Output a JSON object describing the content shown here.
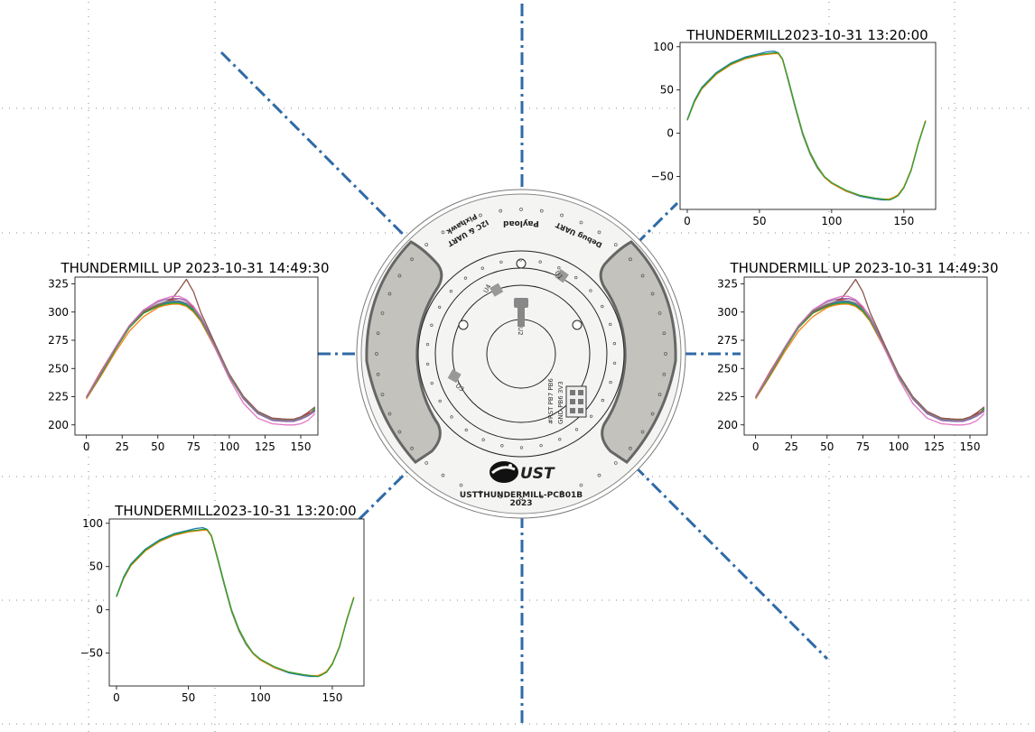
{
  "board": {
    "labels": {
      "payload": "Payload",
      "pixhawk": "Pixhawk",
      "i2c_uart": "I2C & UART",
      "debug_uart": "Debug UART",
      "u1": "U1",
      "u2": "U2",
      "u3": "U3",
      "u4": "U4",
      "header_row1": "#RST PB7 PB6",
      "header_row2": "GND PB6 3V3",
      "logo": "UST",
      "board_name": "USTTHUNDERMILL-PCB01B",
      "year": "2023"
    },
    "colors": {
      "board": "#f4f4f2",
      "pads": "#c4c2bc",
      "axis_lines": "#2f6aa6"
    }
  },
  "chart_data": [
    {
      "id": "top-right",
      "type": "line",
      "title": "THUNDERMILL2023-10-31 13:20:00",
      "xticks": [
        0,
        50,
        100,
        150
      ],
      "yticks": [
        100,
        50,
        0,
        -50
      ],
      "xlim": [
        -5,
        172
      ],
      "ylim": [
        -88,
        105
      ],
      "x": [
        0,
        5,
        10,
        20,
        30,
        40,
        50,
        55,
        60,
        63,
        66,
        70,
        75,
        80,
        85,
        90,
        95,
        100,
        110,
        120,
        130,
        135,
        140,
        143,
        146,
        150,
        155,
        160,
        165
      ],
      "series": [
        {
          "color": "#1f77b4",
          "values": [
            16,
            38,
            53,
            70,
            81,
            88,
            92,
            94,
            95,
            93,
            85,
            60,
            28,
            -2,
            -24,
            -40,
            -51,
            -58,
            -67,
            -73,
            -76,
            -77,
            -77,
            -75,
            -72,
            -63,
            -43,
            -12,
            14
          ]
        },
        {
          "color": "#ff7f0e",
          "values": [
            15,
            36,
            51,
            68,
            79,
            86,
            90,
            91,
            92,
            92,
            85,
            61,
            29,
            -1,
            -23,
            -39,
            -51,
            -58,
            -67,
            -72,
            -75,
            -76,
            -76,
            -74,
            -71,
            -62,
            -42,
            -11,
            15
          ]
        },
        {
          "color": "#2ca02c",
          "values": [
            15,
            37,
            52,
            69,
            80,
            87,
            91,
            92,
            93,
            93,
            86,
            62,
            30,
            0,
            -22,
            -38,
            -50,
            -57,
            -66,
            -72,
            -75,
            -76,
            -77,
            -75,
            -72,
            -63,
            -43,
            -12,
            14
          ]
        }
      ]
    },
    {
      "id": "middle-left",
      "type": "line",
      "title": "THUNDERMILL UP 2023-10-31 14:49:30",
      "xticks": [
        0,
        25,
        50,
        75,
        100,
        125,
        150
      ],
      "yticks": [
        325,
        300,
        275,
        250,
        225,
        200
      ],
      "xlim": [
        -8,
        162
      ],
      "ylim": [
        191,
        331
      ],
      "x": [
        0,
        10,
        20,
        30,
        40,
        50,
        55,
        60,
        65,
        70,
        75,
        80,
        90,
        100,
        110,
        120,
        130,
        140,
        145,
        150,
        155,
        160
      ],
      "series": [
        {
          "color": "#1f77b4",
          "values": [
            224,
            245,
            267,
            287,
            300,
            306,
            308,
            309,
            309,
            307,
            302,
            294,
            270,
            244,
            224,
            211,
            205,
            204,
            204,
            206,
            209,
            214
          ]
        },
        {
          "color": "#ff7f0e",
          "values": [
            223,
            243,
            264,
            283,
            296,
            304,
            306,
            307,
            307,
            305,
            300,
            292,
            268,
            243,
            223,
            210,
            205,
            204,
            204,
            206,
            209,
            213
          ]
        },
        {
          "color": "#2ca02c",
          "values": [
            224,
            244,
            266,
            286,
            299,
            305,
            307,
            308,
            308,
            306,
            301,
            293,
            269,
            243,
            223,
            210,
            204,
            203,
            204,
            205,
            208,
            215
          ]
        },
        {
          "color": "#d62728",
          "values": [
            225,
            247,
            268,
            288,
            301,
            307,
            309,
            311,
            312,
            310,
            304,
            296,
            271,
            245,
            225,
            212,
            206,
            205,
            205,
            207,
            210,
            213
          ]
        },
        {
          "color": "#9467bd",
          "values": [
            224,
            246,
            268,
            288,
            302,
            309,
            311,
            312,
            312,
            310,
            305,
            296,
            271,
            244,
            223,
            210,
            204,
            203,
            203,
            205,
            208,
            212
          ]
        },
        {
          "color": "#8c564b",
          "values": [
            225,
            246,
            267,
            287,
            300,
            306,
            309,
            312,
            320,
            329,
            318,
            300,
            272,
            245,
            225,
            212,
            206,
            205,
            205,
            207,
            211,
            216
          ]
        },
        {
          "color": "#e377c2",
          "values": [
            225,
            246,
            268,
            288,
            302,
            310,
            312,
            314,
            314,
            311,
            305,
            295,
            268,
            241,
            219,
            206,
            201,
            200,
            200,
            201,
            204,
            210
          ]
        },
        {
          "color": "#7f7f7f",
          "values": [
            224,
            245,
            267,
            287,
            301,
            307,
            309,
            310,
            310,
            308,
            303,
            294,
            270,
            244,
            224,
            211,
            205,
            204,
            204,
            206,
            209,
            213
          ]
        }
      ]
    },
    {
      "id": "middle-right",
      "type": "line",
      "title": "THUNDERMILL UP 2023-10-31 14:49:30",
      "xticks": [
        0,
        25,
        50,
        75,
        100,
        125,
        150
      ],
      "yticks": [
        325,
        300,
        275,
        250,
        225,
        200
      ],
      "xlim": [
        -8,
        162
      ],
      "ylim": [
        191,
        331
      ],
      "x": [
        0,
        10,
        20,
        30,
        40,
        50,
        55,
        60,
        65,
        70,
        75,
        80,
        90,
        100,
        110,
        120,
        130,
        140,
        145,
        150,
        155,
        160
      ],
      "series": [
        {
          "color": "#1f77b4",
          "values": [
            224,
            245,
            267,
            287,
            300,
            306,
            308,
            309,
            309,
            307,
            302,
            294,
            270,
            244,
            224,
            211,
            205,
            204,
            204,
            206,
            209,
            214
          ]
        },
        {
          "color": "#ff7f0e",
          "values": [
            223,
            243,
            264,
            283,
            296,
            304,
            306,
            307,
            307,
            305,
            300,
            292,
            268,
            243,
            223,
            210,
            205,
            204,
            204,
            206,
            209,
            213
          ]
        },
        {
          "color": "#2ca02c",
          "values": [
            224,
            244,
            266,
            286,
            299,
            305,
            307,
            308,
            308,
            306,
            301,
            293,
            269,
            243,
            223,
            210,
            204,
            203,
            204,
            205,
            208,
            215
          ]
        },
        {
          "color": "#d62728",
          "values": [
            225,
            247,
            268,
            288,
            301,
            307,
            309,
            311,
            312,
            310,
            304,
            296,
            271,
            245,
            225,
            212,
            206,
            205,
            205,
            207,
            210,
            213
          ]
        },
        {
          "color": "#9467bd",
          "values": [
            224,
            246,
            268,
            288,
            302,
            309,
            311,
            312,
            312,
            310,
            305,
            296,
            271,
            244,
            223,
            210,
            204,
            203,
            203,
            205,
            208,
            212
          ]
        },
        {
          "color": "#8c564b",
          "values": [
            225,
            246,
            267,
            287,
            300,
            306,
            309,
            312,
            320,
            329,
            318,
            300,
            272,
            245,
            225,
            212,
            206,
            205,
            205,
            207,
            211,
            216
          ]
        },
        {
          "color": "#e377c2",
          "values": [
            225,
            246,
            268,
            288,
            302,
            310,
            312,
            314,
            314,
            311,
            305,
            295,
            268,
            241,
            219,
            206,
            201,
            200,
            200,
            201,
            204,
            210
          ]
        },
        {
          "color": "#7f7f7f",
          "values": [
            224,
            245,
            267,
            287,
            301,
            307,
            309,
            310,
            310,
            308,
            303,
            294,
            270,
            244,
            224,
            211,
            205,
            204,
            204,
            206,
            209,
            213
          ]
        }
      ]
    },
    {
      "id": "bottom-left",
      "type": "line",
      "title": "THUNDERMILL2023-10-31 13:20:00",
      "xticks": [
        0,
        50,
        100,
        150
      ],
      "yticks": [
        100,
        50,
        0,
        -50
      ],
      "xlim": [
        -5,
        172
      ],
      "ylim": [
        -88,
        105
      ],
      "x": [
        0,
        5,
        10,
        20,
        30,
        40,
        50,
        55,
        60,
        63,
        66,
        70,
        75,
        80,
        85,
        90,
        95,
        100,
        110,
        120,
        130,
        135,
        140,
        143,
        146,
        150,
        155,
        160,
        165
      ],
      "series": [
        {
          "color": "#1f77b4",
          "values": [
            16,
            38,
            53,
            70,
            81,
            88,
            92,
            94,
            95,
            93,
            85,
            60,
            28,
            -2,
            -24,
            -40,
            -51,
            -58,
            -67,
            -73,
            -76,
            -77,
            -77,
            -75,
            -72,
            -63,
            -43,
            -12,
            14
          ]
        },
        {
          "color": "#ff7f0e",
          "values": [
            15,
            36,
            51,
            68,
            79,
            86,
            90,
            91,
            92,
            92,
            85,
            61,
            29,
            -1,
            -23,
            -39,
            -51,
            -58,
            -67,
            -72,
            -75,
            -76,
            -76,
            -74,
            -71,
            -62,
            -42,
            -11,
            15
          ]
        },
        {
          "color": "#2ca02c",
          "values": [
            15,
            37,
            52,
            69,
            80,
            87,
            91,
            92,
            93,
            93,
            86,
            62,
            30,
            0,
            -22,
            -38,
            -50,
            -57,
            -66,
            -72,
            -75,
            -76,
            -77,
            -75,
            -72,
            -63,
            -43,
            -12,
            14
          ]
        }
      ]
    }
  ]
}
